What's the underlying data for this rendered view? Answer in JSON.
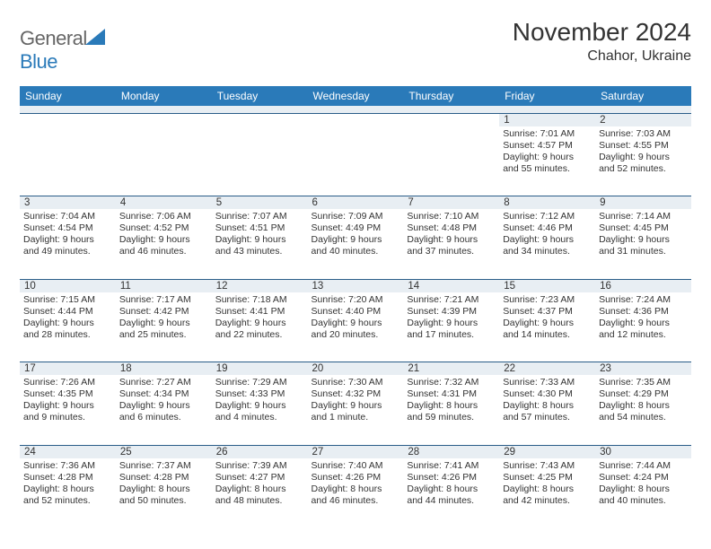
{
  "brand": {
    "part1": "General",
    "part2": "Blue"
  },
  "title": "November 2024",
  "location": "Chahor, Ukraine",
  "columns": [
    "Sunday",
    "Monday",
    "Tuesday",
    "Wednesday",
    "Thursday",
    "Friday",
    "Saturday"
  ],
  "colors": {
    "header_bg": "#2a7ab9",
    "header_text": "#ffffff",
    "daynum_bg": "#e8eef3",
    "rule": "#2a5d88",
    "body_text": "#333333",
    "logo_gray": "#666666",
    "logo_blue": "#2a7ab9",
    "background": "#ffffff"
  },
  "typography": {
    "title_fontsize": 28,
    "location_fontsize": 16,
    "th_fontsize": 12,
    "cell_fontsize": 10.5,
    "daynum_fontsize": 11.5
  },
  "layout": {
    "cols": 7,
    "rows": 5,
    "leading_blanks": 5
  },
  "days": [
    {
      "n": "1",
      "sunrise": "Sunrise: 7:01 AM",
      "sunset": "Sunset: 4:57 PM",
      "day1": "Daylight: 9 hours",
      "day2": "and 55 minutes."
    },
    {
      "n": "2",
      "sunrise": "Sunrise: 7:03 AM",
      "sunset": "Sunset: 4:55 PM",
      "day1": "Daylight: 9 hours",
      "day2": "and 52 minutes."
    },
    {
      "n": "3",
      "sunrise": "Sunrise: 7:04 AM",
      "sunset": "Sunset: 4:54 PM",
      "day1": "Daylight: 9 hours",
      "day2": "and 49 minutes."
    },
    {
      "n": "4",
      "sunrise": "Sunrise: 7:06 AM",
      "sunset": "Sunset: 4:52 PM",
      "day1": "Daylight: 9 hours",
      "day2": "and 46 minutes."
    },
    {
      "n": "5",
      "sunrise": "Sunrise: 7:07 AM",
      "sunset": "Sunset: 4:51 PM",
      "day1": "Daylight: 9 hours",
      "day2": "and 43 minutes."
    },
    {
      "n": "6",
      "sunrise": "Sunrise: 7:09 AM",
      "sunset": "Sunset: 4:49 PM",
      "day1": "Daylight: 9 hours",
      "day2": "and 40 minutes."
    },
    {
      "n": "7",
      "sunrise": "Sunrise: 7:10 AM",
      "sunset": "Sunset: 4:48 PM",
      "day1": "Daylight: 9 hours",
      "day2": "and 37 minutes."
    },
    {
      "n": "8",
      "sunrise": "Sunrise: 7:12 AM",
      "sunset": "Sunset: 4:46 PM",
      "day1": "Daylight: 9 hours",
      "day2": "and 34 minutes."
    },
    {
      "n": "9",
      "sunrise": "Sunrise: 7:14 AM",
      "sunset": "Sunset: 4:45 PM",
      "day1": "Daylight: 9 hours",
      "day2": "and 31 minutes."
    },
    {
      "n": "10",
      "sunrise": "Sunrise: 7:15 AM",
      "sunset": "Sunset: 4:44 PM",
      "day1": "Daylight: 9 hours",
      "day2": "and 28 minutes."
    },
    {
      "n": "11",
      "sunrise": "Sunrise: 7:17 AM",
      "sunset": "Sunset: 4:42 PM",
      "day1": "Daylight: 9 hours",
      "day2": "and 25 minutes."
    },
    {
      "n": "12",
      "sunrise": "Sunrise: 7:18 AM",
      "sunset": "Sunset: 4:41 PM",
      "day1": "Daylight: 9 hours",
      "day2": "and 22 minutes."
    },
    {
      "n": "13",
      "sunrise": "Sunrise: 7:20 AM",
      "sunset": "Sunset: 4:40 PM",
      "day1": "Daylight: 9 hours",
      "day2": "and 20 minutes."
    },
    {
      "n": "14",
      "sunrise": "Sunrise: 7:21 AM",
      "sunset": "Sunset: 4:39 PM",
      "day1": "Daylight: 9 hours",
      "day2": "and 17 minutes."
    },
    {
      "n": "15",
      "sunrise": "Sunrise: 7:23 AM",
      "sunset": "Sunset: 4:37 PM",
      "day1": "Daylight: 9 hours",
      "day2": "and 14 minutes."
    },
    {
      "n": "16",
      "sunrise": "Sunrise: 7:24 AM",
      "sunset": "Sunset: 4:36 PM",
      "day1": "Daylight: 9 hours",
      "day2": "and 12 minutes."
    },
    {
      "n": "17",
      "sunrise": "Sunrise: 7:26 AM",
      "sunset": "Sunset: 4:35 PM",
      "day1": "Daylight: 9 hours",
      "day2": "and 9 minutes."
    },
    {
      "n": "18",
      "sunrise": "Sunrise: 7:27 AM",
      "sunset": "Sunset: 4:34 PM",
      "day1": "Daylight: 9 hours",
      "day2": "and 6 minutes."
    },
    {
      "n": "19",
      "sunrise": "Sunrise: 7:29 AM",
      "sunset": "Sunset: 4:33 PM",
      "day1": "Daylight: 9 hours",
      "day2": "and 4 minutes."
    },
    {
      "n": "20",
      "sunrise": "Sunrise: 7:30 AM",
      "sunset": "Sunset: 4:32 PM",
      "day1": "Daylight: 9 hours",
      "day2": "and 1 minute."
    },
    {
      "n": "21",
      "sunrise": "Sunrise: 7:32 AM",
      "sunset": "Sunset: 4:31 PM",
      "day1": "Daylight: 8 hours",
      "day2": "and 59 minutes."
    },
    {
      "n": "22",
      "sunrise": "Sunrise: 7:33 AM",
      "sunset": "Sunset: 4:30 PM",
      "day1": "Daylight: 8 hours",
      "day2": "and 57 minutes."
    },
    {
      "n": "23",
      "sunrise": "Sunrise: 7:35 AM",
      "sunset": "Sunset: 4:29 PM",
      "day1": "Daylight: 8 hours",
      "day2": "and 54 minutes."
    },
    {
      "n": "24",
      "sunrise": "Sunrise: 7:36 AM",
      "sunset": "Sunset: 4:28 PM",
      "day1": "Daylight: 8 hours",
      "day2": "and 52 minutes."
    },
    {
      "n": "25",
      "sunrise": "Sunrise: 7:37 AM",
      "sunset": "Sunset: 4:28 PM",
      "day1": "Daylight: 8 hours",
      "day2": "and 50 minutes."
    },
    {
      "n": "26",
      "sunrise": "Sunrise: 7:39 AM",
      "sunset": "Sunset: 4:27 PM",
      "day1": "Daylight: 8 hours",
      "day2": "and 48 minutes."
    },
    {
      "n": "27",
      "sunrise": "Sunrise: 7:40 AM",
      "sunset": "Sunset: 4:26 PM",
      "day1": "Daylight: 8 hours",
      "day2": "and 46 minutes."
    },
    {
      "n": "28",
      "sunrise": "Sunrise: 7:41 AM",
      "sunset": "Sunset: 4:26 PM",
      "day1": "Daylight: 8 hours",
      "day2": "and 44 minutes."
    },
    {
      "n": "29",
      "sunrise": "Sunrise: 7:43 AM",
      "sunset": "Sunset: 4:25 PM",
      "day1": "Daylight: 8 hours",
      "day2": "and 42 minutes."
    },
    {
      "n": "30",
      "sunrise": "Sunrise: 7:44 AM",
      "sunset": "Sunset: 4:24 PM",
      "day1": "Daylight: 8 hours",
      "day2": "and 40 minutes."
    }
  ]
}
